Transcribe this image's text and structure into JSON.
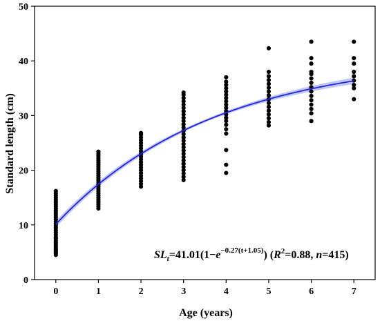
{
  "chart_data": {
    "type": "scatter",
    "xlabel": "Age (years)",
    "ylabel": "Standard length (cm)",
    "xlim": [
      -0.5,
      7.5
    ],
    "ylim": [
      0,
      50
    ],
    "x_ticks": [
      0,
      1,
      2,
      3,
      4,
      5,
      6,
      7
    ],
    "y_ticks": [
      0,
      10,
      20,
      30,
      40,
      50
    ],
    "grid": false,
    "colors": {
      "points": "#000000",
      "fit_line": "#2323e0",
      "confidence_band": "#aab4f2"
    },
    "fit": {
      "model": "von Bertalanffy",
      "Linf": 41.01,
      "k": 0.27,
      "t0": -1.05
    },
    "equation": {
      "lhs": "SL",
      "lhs_sub": "t",
      "mid": "=41.01(1−",
      "base": "e",
      "exponent": "−0.27(t+1.05)",
      "after_exp": ") (",
      "r2": "R",
      "r2_sup": "2",
      "r2_val": "=0.88, ",
      "n_label": "n",
      "n_val": "=415)"
    },
    "points": [
      {
        "age": 0,
        "sl": [
          4.5,
          4.8,
          5.0,
          5.3,
          5.6,
          5.9,
          6.2,
          6.5,
          6.8,
          7.1,
          7.5,
          7.8,
          8.2,
          8.6,
          9.0,
          9.4,
          9.8,
          10.2,
          10.6,
          11.0,
          11.4,
          11.8,
          12.2,
          12.6,
          13.0,
          13.4,
          13.8,
          14.2,
          14.6,
          15.0,
          15.4,
          15.8,
          16.2
        ]
      },
      {
        "age": 1,
        "sl": [
          13.0,
          13.4,
          13.8,
          14.2,
          14.6,
          15.0,
          15.4,
          15.8,
          16.2,
          16.6,
          17.0,
          17.4,
          17.8,
          18.2,
          18.6,
          19.0,
          19.4,
          19.8,
          20.2,
          20.6,
          21.0,
          21.4,
          21.8,
          22.2,
          22.6,
          23.0,
          23.4
        ]
      },
      {
        "age": 2,
        "sl": [
          17.0,
          17.5,
          18.0,
          18.5,
          19.0,
          19.5,
          20.0,
          20.5,
          21.0,
          21.5,
          22.0,
          22.5,
          23.0,
          23.5,
          24.0,
          24.5,
          25.0,
          25.5,
          26.0,
          26.5,
          26.8
        ]
      },
      {
        "age": 3,
        "sl": [
          18.2,
          18.8,
          19.4,
          20.0,
          20.6,
          21.2,
          21.8,
          22.4,
          23.0,
          23.6,
          24.2,
          24.8,
          25.4,
          26.0,
          26.6,
          27.2,
          27.8,
          28.4,
          29.0,
          29.6,
          30.2,
          30.8,
          31.4,
          32.0,
          32.6,
          33.2,
          33.8,
          34.2
        ]
      },
      {
        "age": 4,
        "sl": [
          19.5,
          21.0,
          23.7,
          26.7,
          27.5,
          28.3,
          29.0,
          29.6,
          30.2,
          30.8,
          31.4,
          32.0,
          32.6,
          33.2,
          33.8,
          34.4,
          35.0,
          35.6,
          36.2,
          37.0
        ]
      },
      {
        "age": 5,
        "sl": [
          28.2,
          28.8,
          29.5,
          30.2,
          30.9,
          31.6,
          32.3,
          33.0,
          33.7,
          34.4,
          35.1,
          35.8,
          36.5,
          37.2,
          38.0,
          42.3
        ]
      },
      {
        "age": 6,
        "sl": [
          29.0,
          30.4,
          31.2,
          32.0,
          32.8,
          33.6,
          34.4,
          35.2,
          36.0,
          36.8,
          37.6,
          38.0,
          39.5,
          40.5,
          43.5
        ]
      },
      {
        "age": 7,
        "sl": [
          33.0,
          35.0,
          35.6,
          36.4,
          37.2,
          38.0,
          39.5,
          40.5,
          43.5
        ]
      }
    ]
  }
}
